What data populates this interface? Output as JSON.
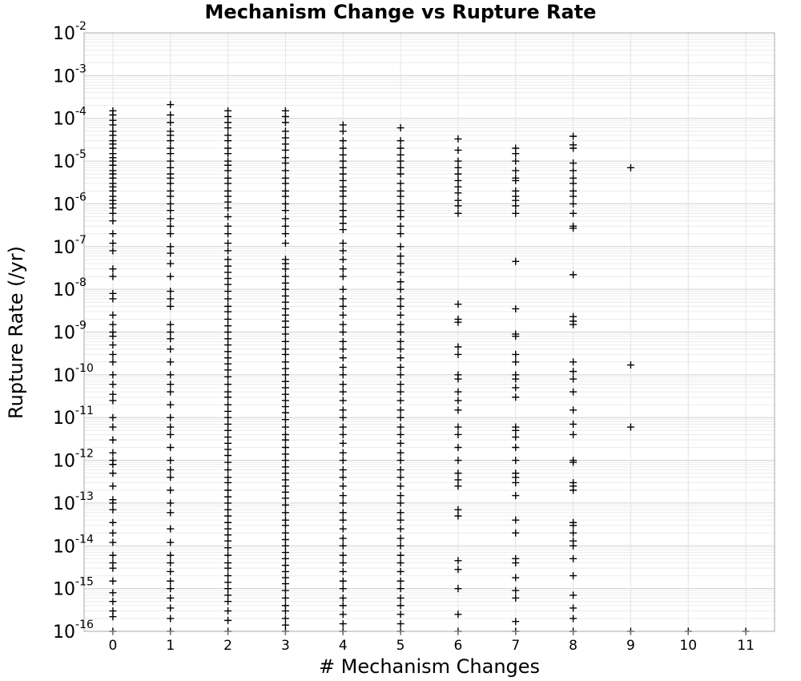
{
  "chart_data": {
    "type": "scatter",
    "title": "Mechanism Change vs Rupture Rate",
    "xlabel": "# Mechanism Changes",
    "ylabel": "Rupture Rate (/yr)",
    "x_ticks": [
      "0",
      "1",
      "2",
      "3",
      "4",
      "5",
      "6",
      "7",
      "8",
      "9",
      "10",
      "11"
    ],
    "y_scale": "log",
    "y_ticks": [
      {
        "base": "10",
        "exp": "-16"
      },
      {
        "base": "10",
        "exp": "-15"
      },
      {
        "base": "10",
        "exp": "-14"
      },
      {
        "base": "10",
        "exp": "-13"
      },
      {
        "base": "10",
        "exp": "-12"
      },
      {
        "base": "10",
        "exp": "-11"
      },
      {
        "base": "10",
        "exp": "-10"
      },
      {
        "base": "10",
        "exp": "-9"
      },
      {
        "base": "10",
        "exp": "-8"
      },
      {
        "base": "10",
        "exp": "-7"
      },
      {
        "base": "10",
        "exp": "-6"
      },
      {
        "base": "10",
        "exp": "-5"
      },
      {
        "base": "10",
        "exp": "-4"
      },
      {
        "base": "10",
        "exp": "-3"
      },
      {
        "base": "10",
        "exp": "-2"
      }
    ],
    "xlim": [
      -0.5,
      11.5
    ],
    "ylim": [
      1e-16,
      0.01
    ],
    "grid": true,
    "legend": "none",
    "marker": "plus",
    "marker_color": "#000000",
    "series": [
      {
        "x": 0,
        "y": [
          0.00015,
          0.00012,
          9e-05,
          7e-05,
          5e-05,
          4e-05,
          3e-05,
          2.5e-05,
          2e-05,
          1.5e-05,
          1.2e-05,
          1e-05,
          8e-06,
          6e-06,
          5e-06,
          4e-06,
          3e-06,
          2.5e-06,
          2e-06,
          1.5e-06,
          1.2e-06,
          1e-06,
          8e-07,
          6e-07,
          4e-07,
          2e-07,
          1.2e-07,
          8e-08,
          3e-08,
          2e-08,
          8e-09,
          6e-09,
          2.5e-09,
          1.5e-09,
          1e-09,
          8e-10,
          5e-10,
          3e-10,
          2e-10,
          1e-10,
          6e-11,
          3.5e-11,
          2.5e-11,
          1e-11,
          6e-12,
          3e-12,
          1.5e-12,
          1e-12,
          8e-13,
          5e-13,
          2.5e-13,
          1.2e-13,
          1e-13,
          7e-14,
          3.5e-14,
          2e-14,
          1.2e-14,
          6e-15,
          4e-15,
          3e-15,
          1.5e-15,
          8e-16,
          5e-16,
          3e-16,
          2.2e-16,
          1e-16
        ]
      },
      {
        "x": 1,
        "y": [
          0.00021,
          0.00012,
          8e-05,
          5e-05,
          4e-05,
          3e-05,
          2e-05,
          1.5e-05,
          1e-05,
          7e-06,
          5e-06,
          4e-06,
          3e-06,
          2e-06,
          1.5e-06,
          1e-06,
          7e-07,
          4.5e-07,
          3e-07,
          2e-07,
          1e-07,
          7e-08,
          4e-08,
          2e-08,
          9e-09,
          6e-09,
          4e-09,
          1.5e-09,
          1e-09,
          7e-10,
          4e-10,
          2e-10,
          1e-10,
          6e-11,
          4e-11,
          2e-11,
          1e-11,
          6e-12,
          4e-12,
          2e-12,
          1e-12,
          6e-13,
          4e-13,
          2e-13,
          1e-13,
          6e-14,
          2.5e-14,
          1.2e-14,
          6e-15,
          4e-15,
          2.5e-15,
          1.5e-15,
          1e-15,
          6e-16,
          3.5e-16,
          2e-16,
          1e-16
        ]
      },
      {
        "x": 2,
        "y": [
          0.00015,
          0.00011,
          8e-05,
          6e-05,
          4e-05,
          3e-05,
          2e-05,
          1.5e-05,
          1e-05,
          8e-06,
          6e-06,
          4e-06,
          3e-06,
          2e-06,
          1.5e-06,
          1.1e-06,
          8e-07,
          5e-07,
          3e-07,
          2e-07,
          1.2e-07,
          8e-08,
          5e-08,
          3.5e-08,
          2.5e-08,
          1.8e-08,
          1.3e-08,
          9e-09,
          6e-09,
          4e-09,
          3e-09,
          2e-09,
          1.4e-09,
          1e-09,
          7e-10,
          5e-10,
          3.5e-10,
          2.5e-10,
          1.8e-10,
          1.3e-10,
          9e-11,
          6e-11,
          4e-11,
          3e-11,
          2e-11,
          1.4e-11,
          1e-11,
          7e-12,
          5e-12,
          3.5e-12,
          2.5e-12,
          1.8e-12,
          1.3e-12,
          9e-13,
          6e-13,
          4e-13,
          3e-13,
          2e-13,
          1.4e-13,
          1e-13,
          7e-14,
          5e-14,
          3.5e-14,
          2.5e-14,
          1.8e-14,
          1.3e-14,
          9e-15,
          6e-15,
          4e-15,
          3e-15,
          2e-15,
          1.4e-15,
          1e-15,
          7e-16,
          5e-16,
          3e-16,
          1.8e-16,
          1e-16
        ]
      },
      {
        "x": 3,
        "y": [
          0.00015,
          0.00011,
          8e-05,
          5e-05,
          3.5e-05,
          2.5e-05,
          1.8e-05,
          1.2e-05,
          9e-06,
          6e-06,
          4e-06,
          3e-06,
          2e-06,
          1.5e-06,
          1e-06,
          7e-07,
          4.5e-07,
          3e-07,
          2e-07,
          1.2e-07,
          5e-08,
          4e-08,
          3e-08,
          2e-08,
          1.4e-08,
          1e-08,
          7e-09,
          5e-09,
          3.5e-09,
          2.5e-09,
          1.8e-09,
          1.3e-09,
          9e-10,
          6e-10,
          4e-10,
          3e-10,
          2e-10,
          1.4e-10,
          1e-10,
          7e-11,
          5e-11,
          3.5e-11,
          2.5e-11,
          1.8e-11,
          1.3e-11,
          9e-12,
          6e-12,
          4e-12,
          3e-12,
          2e-12,
          1.4e-12,
          1e-12,
          7e-13,
          5e-13,
          3.5e-13,
          2.5e-13,
          1.8e-13,
          1.3e-13,
          9e-14,
          6e-14,
          4e-14,
          3e-14,
          2e-14,
          1.4e-14,
          1e-14,
          7e-15,
          5e-15,
          3.5e-15,
          2.5e-15,
          1.8e-15,
          1.3e-15,
          9e-16,
          6e-16,
          4e-16,
          3e-16,
          2e-16,
          1.4e-16,
          1e-16
        ]
      },
      {
        "x": 4,
        "y": [
          7e-05,
          5e-05,
          3e-05,
          2e-05,
          1.4e-05,
          1e-05,
          7e-06,
          5e-06,
          3.5e-06,
          2.5e-06,
          2e-06,
          1.5e-06,
          1e-06,
          7e-07,
          5e-07,
          3.5e-07,
          2.5e-07,
          1.2e-07,
          8e-08,
          5e-08,
          3e-08,
          2e-08,
          1e-08,
          6e-09,
          4e-09,
          2.5e-09,
          1.5e-09,
          1e-09,
          6e-10,
          4e-10,
          2.5e-10,
          1.5e-10,
          1e-10,
          6e-11,
          4e-11,
          2.5e-11,
          1.5e-11,
          1e-11,
          6e-12,
          4e-12,
          2.5e-12,
          1.5e-12,
          1e-12,
          6e-13,
          4e-13,
          2.5e-13,
          1.5e-13,
          1e-13,
          6e-14,
          4e-14,
          2.5e-14,
          1.5e-14,
          1e-14,
          6e-15,
          4e-15,
          2.5e-15,
          1.5e-15,
          1e-15,
          6e-16,
          4e-16,
          2.5e-16,
          1.5e-16,
          1e-16
        ]
      },
      {
        "x": 5,
        "y": [
          6e-05,
          3e-05,
          2e-05,
          1.4e-05,
          1e-05,
          7e-06,
          5e-06,
          3e-06,
          2e-06,
          1.5e-06,
          1e-06,
          7e-07,
          5e-07,
          3e-07,
          2e-07,
          1e-07,
          6e-08,
          4e-08,
          2.5e-08,
          1.5e-08,
          1e-08,
          6e-09,
          4e-09,
          2.5e-09,
          1.5e-09,
          1e-09,
          6e-10,
          4e-10,
          2.5e-10,
          1.5e-10,
          1e-10,
          6e-11,
          4e-11,
          2.5e-11,
          1.5e-11,
          1e-11,
          6e-12,
          4e-12,
          2.5e-12,
          1.5e-12,
          1e-12,
          6e-13,
          4e-13,
          2.5e-13,
          1.5e-13,
          1e-13,
          6e-14,
          4e-14,
          2.5e-14,
          1.5e-14,
          1e-14,
          6e-15,
          4e-15,
          2.5e-15,
          1.5e-15,
          1e-15,
          6e-16,
          4e-16,
          2.5e-16,
          1.5e-16,
          1e-16
        ]
      },
      {
        "x": 6,
        "y": [
          3.3e-05,
          1.8e-05,
          1e-05,
          7e-06,
          5e-06,
          3.5e-06,
          2.5e-06,
          1.8e-06,
          1.2e-06,
          9e-07,
          6e-07,
          4.5e-09,
          2e-09,
          1.7e-09,
          4.5e-10,
          3e-10,
          1e-10,
          8e-11,
          4e-11,
          2.5e-11,
          1.5e-11,
          6e-12,
          4e-12,
          2e-12,
          1e-12,
          5e-13,
          3.5e-13,
          2.5e-13,
          7e-14,
          5e-14,
          4.5e-15,
          2.8e-15,
          1e-15,
          2.5e-16,
          1e-16
        ]
      },
      {
        "x": 7,
        "y": [
          2e-05,
          1.5e-05,
          1e-05,
          6e-06,
          4e-06,
          3.5e-06,
          2e-06,
          1.5e-06,
          1.2e-06,
          9e-07,
          6e-07,
          4.5e-08,
          3.5e-09,
          9e-10,
          8e-10,
          3e-10,
          2e-10,
          1e-10,
          8e-11,
          5e-11,
          3e-11,
          6e-12,
          5e-12,
          3.5e-12,
          2e-12,
          1e-12,
          5e-13,
          4e-13,
          3e-13,
          1.5e-13,
          4e-14,
          2e-14,
          5e-15,
          4e-15,
          1.8e-15,
          9e-16,
          6e-16,
          1.7e-16,
          1e-16
        ]
      },
      {
        "x": 8,
        "y": [
          3.8e-05,
          2.4e-05,
          2e-05,
          9e-06,
          6e-06,
          4e-06,
          3e-06,
          2e-06,
          1.5e-06,
          1e-06,
          6e-07,
          3e-07,
          2.7e-07,
          2.2e-08,
          2.3e-09,
          1.8e-09,
          1.5e-09,
          2e-10,
          1.2e-10,
          8e-11,
          4e-11,
          1.5e-11,
          7e-12,
          4e-12,
          1e-12,
          9e-13,
          3e-13,
          2.5e-13,
          2e-13,
          3.5e-14,
          3e-14,
          2e-14,
          1.3e-14,
          1e-14,
          5e-15,
          2e-15,
          7e-16,
          3.5e-16,
          2e-16,
          1e-16
        ]
      },
      {
        "x": 9,
        "y": [
          7e-06,
          1.7e-10,
          6e-12,
          1e-16
        ]
      },
      {
        "x": 10,
        "y": [
          1e-16
        ]
      },
      {
        "x": 11,
        "y": [
          1e-16
        ]
      }
    ]
  }
}
